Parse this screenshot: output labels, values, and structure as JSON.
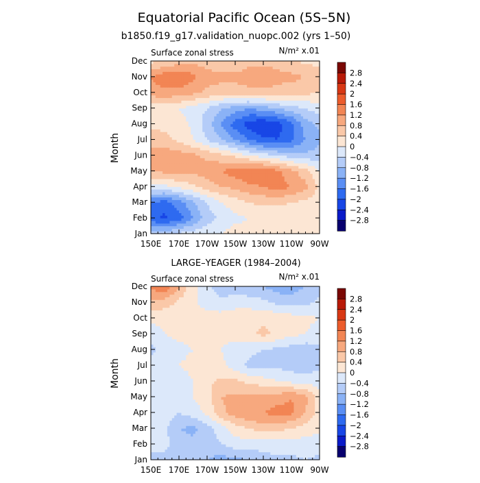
{
  "page": {
    "title": "Equatorial Pacific Ocean (5S–5N)",
    "subtitle": "b1850.f19_g17.validation_nuopc.002 (yrs 1–50)"
  },
  "chart_data": [
    {
      "type": "heatmap",
      "panel_title": "",
      "left_label": "Surface zonal stress",
      "units_label": "N/m² x.01",
      "ylabel": "Month",
      "x_ticks": [
        "150E",
        "170E",
        "170W",
        "150W",
        "130W",
        "110W",
        "90W"
      ],
      "y_ticks": [
        "Jan",
        "Feb",
        "Mar",
        "Apr",
        "May",
        "Jun",
        "Jul",
        "Aug",
        "Sep",
        "Oct",
        "Nov",
        "Dec"
      ],
      "levels": [
        -2.8,
        -2.4,
        -2,
        -1.6,
        -1.2,
        -0.8,
        -0.4,
        0,
        0.4,
        0.8,
        1.2,
        1.6,
        2,
        2.4,
        2.8
      ],
      "values": [
        [
          -0.5,
          -0.5,
          -0.3,
          -0.2,
          -0.1,
          0.0,
          0.2,
          0.1,
          0.1,
          0.1,
          0.0,
          0.1,
          0.3
        ],
        [
          -1.9,
          -2.1,
          -1.8,
          -1.2,
          -0.6,
          -0.3,
          -0.1,
          0.0,
          0.0,
          0.0,
          0.0,
          0.1,
          0.2
        ],
        [
          -1.6,
          -1.8,
          -1.4,
          -0.9,
          -0.4,
          0.0,
          0.2,
          0.4,
          0.5,
          0.5,
          0.4,
          0.3,
          0.2
        ],
        [
          -0.1,
          -0.1,
          0.1,
          0.3,
          0.6,
          0.8,
          0.9,
          1.1,
          1.2,
          1.4,
          1.2,
          0.9,
          0.3
        ],
        [
          0.8,
          0.9,
          0.9,
          0.9,
          1.0,
          1.2,
          1.4,
          1.6,
          1.5,
          1.3,
          0.9,
          0.6,
          0.0
        ],
        [
          1.0,
          1.1,
          1.0,
          0.9,
          0.7,
          0.5,
          0.3,
          0.0,
          -0.2,
          -0.4,
          -0.6,
          -0.7,
          -0.6
        ],
        [
          0.6,
          0.5,
          0.3,
          0.0,
          -0.4,
          -0.8,
          -1.2,
          -1.6,
          -1.9,
          -2.0,
          -1.7,
          -1.2,
          -0.9
        ],
        [
          0.3,
          0.3,
          0.2,
          -0.1,
          -0.6,
          -1.2,
          -1.8,
          -2.2,
          -2.4,
          -2.2,
          -1.7,
          -1.0,
          -0.7
        ],
        [
          0.1,
          0.1,
          0.0,
          -0.2,
          -0.4,
          -0.8,
          -1.0,
          -1.2,
          -1.0,
          -0.8,
          -0.6,
          -0.4,
          -0.2
        ],
        [
          1.0,
          1.1,
          1.0,
          0.9,
          0.7,
          0.6,
          0.6,
          0.7,
          0.7,
          0.7,
          0.6,
          0.5,
          0.4
        ],
        [
          1.2,
          1.5,
          1.6,
          1.3,
          1.0,
          0.9,
          0.9,
          1.0,
          1.0,
          0.9,
          0.9,
          0.8,
          0.6
        ],
        [
          0.3,
          0.4,
          0.6,
          0.7,
          0.6,
          0.5,
          0.5,
          0.7,
          0.7,
          0.7,
          0.5,
          0.3,
          0.3
        ]
      ]
    },
    {
      "type": "heatmap",
      "panel_title": "LARGE–YEAGER (1984–2004)",
      "left_label": "Surface zonal stress",
      "units_label": "N/m² x.01",
      "ylabel": "Month",
      "x_ticks": [
        "150E",
        "170E",
        "170W",
        "150W",
        "130W",
        "110W",
        "90W"
      ],
      "y_ticks": [
        "Jan",
        "Feb",
        "Mar",
        "Apr",
        "May",
        "Jun",
        "Jul",
        "Aug",
        "Sep",
        "Oct",
        "Nov",
        "Dec"
      ],
      "levels": [
        -2.8,
        -2.4,
        -2,
        -1.6,
        -1.2,
        -0.8,
        -0.4,
        0,
        0.4,
        0.8,
        1.2,
        1.6,
        2,
        2.4,
        2.8
      ],
      "values": [
        [
          -0.5,
          -0.5,
          -0.6,
          -0.6,
          -0.8,
          -1.0,
          -0.9,
          -0.8,
          -0.6,
          -0.5,
          -0.5,
          -0.4,
          -0.5
        ],
        [
          -0.3,
          -0.3,
          -0.6,
          -0.7,
          -0.6,
          -0.4,
          -0.2,
          -0.2,
          -0.2,
          -0.2,
          -0.2,
          -0.2,
          -0.2
        ],
        [
          -0.2,
          -0.3,
          -0.8,
          -0.9,
          -0.6,
          -0.2,
          0.2,
          0.4,
          0.6,
          0.5,
          0.4,
          0.2,
          0.1
        ],
        [
          -0.2,
          -0.2,
          -0.4,
          -0.2,
          0.1,
          0.7,
          1.0,
          1.2,
          1.2,
          1.4,
          1.3,
          0.8,
          0.2
        ],
        [
          -0.3,
          -0.2,
          -0.2,
          0.0,
          0.2,
          0.8,
          0.9,
          0.9,
          0.9,
          1.0,
          1.2,
          0.9,
          0.2
        ],
        [
          -0.3,
          -0.2,
          -0.2,
          0.0,
          0.3,
          0.5,
          0.5,
          0.3,
          0.2,
          0.0,
          -0.1,
          -0.2,
          -0.2
        ],
        [
          -0.3,
          -0.1,
          0.0,
          0.1,
          0.1,
          0.1,
          -0.2,
          -0.5,
          -0.6,
          -0.5,
          -0.6,
          -0.6,
          -0.5
        ],
        [
          -0.5,
          -0.2,
          -0.1,
          0.0,
          0.0,
          0.0,
          -0.2,
          -0.3,
          -0.4,
          -0.5,
          -0.6,
          -0.7,
          -0.5
        ],
        [
          -0.2,
          0.0,
          0.1,
          0.1,
          0.1,
          0.1,
          0.2,
          0.3,
          0.5,
          0.3,
          0.1,
          0.0,
          -0.2
        ],
        [
          0.1,
          0.1,
          0.2,
          0.2,
          0.2,
          0.2,
          0.3,
          0.3,
          0.3,
          0.3,
          0.2,
          0.1,
          0.0
        ],
        [
          0.7,
          0.6,
          0.3,
          0.1,
          -0.2,
          -0.3,
          -0.2,
          -0.2,
          -0.3,
          -0.5,
          -0.6,
          -0.5,
          -0.3
        ],
        [
          1.3,
          1.5,
          0.8,
          0.1,
          -0.3,
          -0.6,
          -0.6,
          -0.7,
          -0.8,
          -1.0,
          -1.0,
          -0.8,
          -0.6
        ]
      ]
    }
  ],
  "colorbar": {
    "labels": [
      "2.8",
      "2.4",
      "2",
      "1.6",
      "1.2",
      "0.8",
      "0.4",
      "0",
      "−0.4",
      "−0.8",
      "−1.2",
      "−1.6",
      "−2",
      "−2.4",
      "−2.8"
    ],
    "colors": [
      "#08006E",
      "#0A1AC8",
      "#1846E6",
      "#2E6AF0",
      "#5A8EF4",
      "#8AB2F6",
      "#B4CCF8",
      "#DCE8FA",
      "#FCE6D4",
      "#FAC8A8",
      "#F7A87E",
      "#F28554",
      "#EC5C2C",
      "#D83814",
      "#B81A08",
      "#7A0804"
    ]
  }
}
